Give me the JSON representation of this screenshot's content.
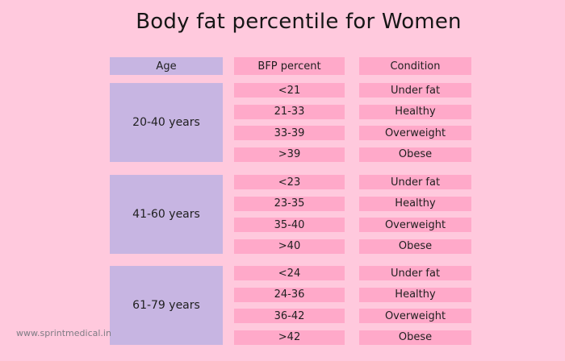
{
  "title": "Body fat percentile for Women",
  "watermark": "www.sprintmedical.in",
  "colors": {
    "background": "#FFC9DD",
    "cell_pink": "#FFA9C9",
    "cell_lavender": "#C7B5E2",
    "text": "#1F1F1F",
    "watermark_text": "#7E7C84"
  },
  "table": {
    "headers": {
      "age": "Age",
      "bfp": "BFP percent",
      "condition": "Condition"
    },
    "groups": [
      {
        "age": "20-40 years",
        "rows": [
          {
            "bfp": "<21",
            "condition": "Under fat"
          },
          {
            "bfp": "21-33",
            "condition": "Healthy"
          },
          {
            "bfp": "33-39",
            "condition": "Overweight"
          },
          {
            "bfp": ">39",
            "condition": "Obese"
          }
        ]
      },
      {
        "age": "41-60 years",
        "rows": [
          {
            "bfp": "<23",
            "condition": "Under fat"
          },
          {
            "bfp": "23-35",
            "condition": "Healthy"
          },
          {
            "bfp": "35-40",
            "condition": "Overweight"
          },
          {
            "bfp": ">40",
            "condition": "Obese"
          }
        ]
      },
      {
        "age": "61-79 years",
        "rows": [
          {
            "bfp": "<24",
            "condition": "Under fat"
          },
          {
            "bfp": "24-36",
            "condition": "Healthy"
          },
          {
            "bfp": "36-42",
            "condition": "Overweight"
          },
          {
            "bfp": ">42",
            "condition": "Obese"
          }
        ]
      }
    ]
  },
  "chart_data": {
    "type": "table",
    "title": "Body fat percentile for Women",
    "columns": [
      "Age",
      "BFP percent",
      "Condition"
    ],
    "rows": [
      [
        "20-40 years",
        "<21",
        "Under fat"
      ],
      [
        "20-40 years",
        "21-33",
        "Healthy"
      ],
      [
        "20-40 years",
        "33-39",
        "Overweight"
      ],
      [
        "20-40 years",
        ">39",
        "Obese"
      ],
      [
        "41-60 years",
        "<23",
        "Under fat"
      ],
      [
        "41-60 years",
        "23-35",
        "Healthy"
      ],
      [
        "41-60 years",
        "35-40",
        "Overweight"
      ],
      [
        "41-60 years",
        ">40",
        "Obese"
      ],
      [
        "61-79 years",
        "<24",
        "Under fat"
      ],
      [
        "61-79 years",
        "24-36",
        "Healthy"
      ],
      [
        "61-79 years",
        "36-42",
        "Overweight"
      ],
      [
        "61-79 years",
        ">42",
        "Obese"
      ]
    ]
  }
}
